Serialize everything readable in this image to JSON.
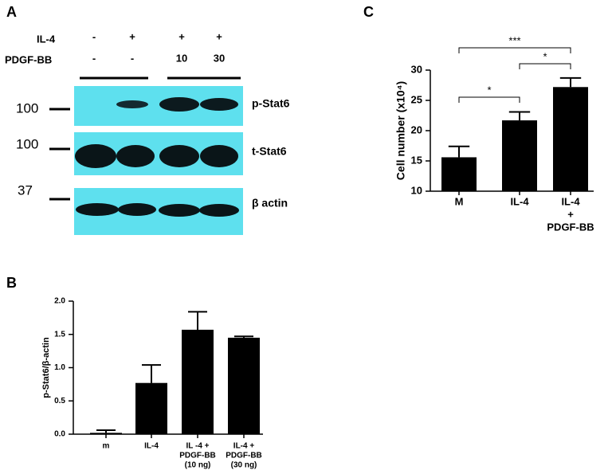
{
  "panel_labels": [
    "A",
    "B",
    "C"
  ],
  "blot": {
    "row_labels": [
      "IL-4",
      "PDGF-BB"
    ],
    "il4": [
      "-",
      "+",
      "+",
      "+"
    ],
    "pdgf": [
      "-",
      "-",
      "10",
      "30"
    ],
    "bands": [
      "p-Stat6",
      "t-Stat6",
      "β actin"
    ],
    "markers": [
      "100",
      "100",
      "37"
    ]
  },
  "chart_data": [
    {
      "type": "bar",
      "ylabel": "p-Stat6/β-actin",
      "categories": [
        [
          "m"
        ],
        [
          "IL-4"
        ],
        [
          "IL -4 +",
          "PDGF-BB",
          "(10 ng)"
        ],
        [
          "IL-4 +",
          "PDGF-BB",
          "(30 ng)"
        ]
      ],
      "values": [
        0.02,
        0.77,
        1.57,
        1.45
      ],
      "errors": [
        0.04,
        0.27,
        0.27,
        0.02
      ],
      "color": "#000000",
      "ylim": [
        0,
        2
      ],
      "yticks": [
        {
          "value": 0,
          "label": "0.0"
        },
        {
          "value": 0.5,
          "label": "0.5"
        },
        {
          "value": 1,
          "label": "1.0"
        },
        {
          "value": 1.5,
          "label": "1.5"
        },
        {
          "value": 2,
          "label": "2.0"
        }
      ]
    },
    {
      "type": "bar",
      "ylabel": "Cell number (x10⁴)",
      "categories": [
        [
          "M"
        ],
        [
          "IL-4"
        ],
        [
          "IL-4",
          "+",
          "PDGF-BB"
        ]
      ],
      "values": [
        15.6,
        21.7,
        27.2
      ],
      "errors": [
        1.8,
        1.4,
        1.5
      ],
      "color": "#000000",
      "ylim": [
        10,
        30
      ],
      "yticks": [
        10,
        15,
        20,
        25,
        30
      ],
      "significance": [
        "*",
        "*",
        "***"
      ]
    }
  ]
}
